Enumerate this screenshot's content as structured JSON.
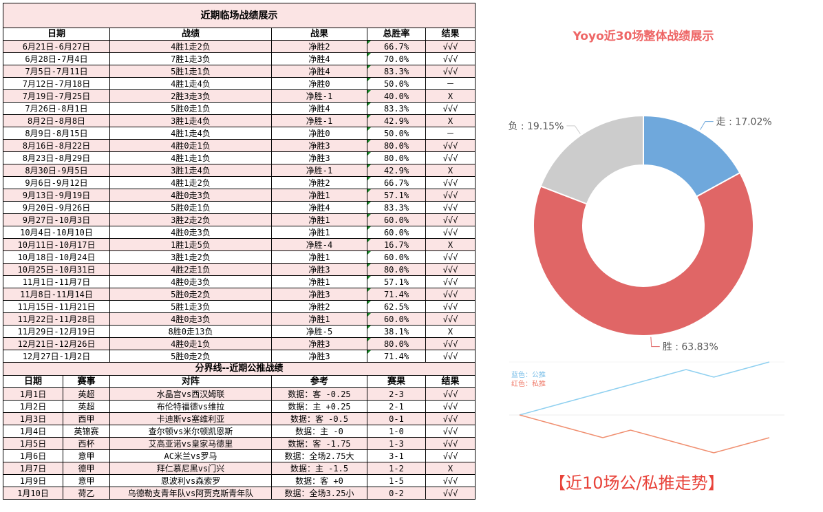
{
  "left": {
    "title": "近期临场战绩展示",
    "headers": [
      "日期",
      "战绩",
      "战果",
      "总胜率",
      "结果"
    ],
    "weekly": [
      [
        "6月21日-6月27日",
        "4胜1走2负",
        "净胜2",
        "66.7%",
        "√√√"
      ],
      [
        "6月28日-7月4日",
        "7胜1走3负",
        "净胜4",
        "70.0%",
        "√√√"
      ],
      [
        "7月5日-7月11日",
        "5胜1走1负",
        "净胜4",
        "83.3%",
        "√√√"
      ],
      [
        "7月12日-7月18日",
        "4胜1走4负",
        "净胜0",
        "50.0%",
        "－"
      ],
      [
        "7月19日-7月25日",
        "2胜3走3负",
        "净胜-1",
        "40.0%",
        "X"
      ],
      [
        "7月26日-8月1日",
        "5胜0走1负",
        "净胜4",
        "83.3%",
        "√√√"
      ],
      [
        "8月2日-8月8日",
        "3胜1走4负",
        "净胜-1",
        "42.9%",
        "X"
      ],
      [
        "8月9日-8月15日",
        "4胜1走4负",
        "净胜0",
        "50.0%",
        "－"
      ],
      [
        "8月16日-8月22日",
        "4胜0走1负",
        "净胜3",
        "80.0%",
        "√√√"
      ],
      [
        "8月23日-8月29日",
        "4胜1走1负",
        "净胜3",
        "80.0%",
        "√√√"
      ],
      [
        "8月30日-9月5日",
        "3胜1走4负",
        "净胜-1",
        "42.9%",
        "X"
      ],
      [
        "9月6日-9月12日",
        "4胜1走2负",
        "净胜2",
        "66.7%",
        "√√√"
      ],
      [
        "9月13日-9月19日",
        "4胜0走3负",
        "净胜1",
        "57.1%",
        "√√√"
      ],
      [
        "9月20日-9月26日",
        "5胜0走1负",
        "净胜4",
        "83.3%",
        "√√√"
      ],
      [
        "9月27日-10月3日",
        "3胜2走2负",
        "净胜1",
        "60.0%",
        "√√√"
      ],
      [
        "10月4日-10月10日",
        "4胜0走3负",
        "净胜1",
        "60.0%",
        "√√√"
      ],
      [
        "10月11日-10月17日",
        "1胜1走5负",
        "净胜-4",
        "16.7%",
        "X"
      ],
      [
        "10月18日-10月24日",
        "3胜1走2负",
        "净胜1",
        "60.0%",
        "√√√"
      ],
      [
        "10月25日-10月31日",
        "4胜2走1负",
        "净胜3",
        "80.0%",
        "√√√"
      ],
      [
        "11月1日-11月7日",
        "4胜0走3负",
        "净胜1",
        "57.1%",
        "√√√"
      ],
      [
        "11月8日-11月14日",
        "5胜0走2负",
        "净胜3",
        "71.4%",
        "√√√"
      ],
      [
        "11月15日-11月21日",
        "5胜1走3负",
        "净胜2",
        "62.5%",
        "√√√"
      ],
      [
        "11月22日-11月28日",
        "4胜0走3负",
        "净胜1",
        "60.0%",
        "√√√"
      ],
      [
        "11月29日-12月19日",
        "8胜0走13负",
        "净胜-5",
        "38.1%",
        "X"
      ],
      [
        "12月21日-12月26日",
        "4胜0走1负",
        "净胜3",
        "80.0%",
        "√√√"
      ],
      [
        "12月27日-1月2日",
        "5胜0走2负",
        "净胜3",
        "71.4%",
        "√√√"
      ]
    ],
    "divider": "分界线--近期公推战绩",
    "match_headers": [
      "日期",
      "赛事",
      "对阵",
      "参考",
      "赛果",
      "结果"
    ],
    "matches": [
      [
        "1月1日",
        "英超",
        "水晶宫vs西汉姆联",
        "数据：客 -0.25",
        "2-3",
        "√√√"
      ],
      [
        "1月2日",
        "英超",
        "布伦特福德vs维拉",
        "数据：主 +0.25",
        "2-1",
        "√√√"
      ],
      [
        "1月3日",
        "西甲",
        "卡迪斯vs塞维利亚",
        "数据：客 -0.5",
        "0-1",
        "√√√"
      ],
      [
        "1月4日",
        "英锦赛",
        "查尔顿vs米尔顿凯恩斯",
        "数据：主 -0",
        "1-0",
        "√√√"
      ],
      [
        "1月5日",
        "西杯",
        "艾高亚诺vs皇家马德里",
        "数据：客 -1.75",
        "1-3",
        "√√√"
      ],
      [
        "1月6日",
        "意甲",
        "AC米兰vs罗马",
        "数据：全场2.75大",
        "3-1",
        "√√√"
      ],
      [
        "1月7日",
        "德甲",
        "拜仁慕尼黑vs门兴",
        "数据：主 -1.5",
        "1-2",
        "X"
      ],
      [
        "1月9日",
        "意甲",
        "恩波利vs森索罗",
        "数据：客 +0",
        "1-5",
        "√√√"
      ],
      [
        "1月10日",
        "荷乙",
        "乌德勒支青年队vs阿贾克斯青年队",
        "数据：全场3.25小",
        "0-2",
        "√√√"
      ]
    ]
  },
  "donut": {
    "title": "Yoyo近30场整体战绩展示"
  },
  "chart_data": [
    {
      "type": "pie",
      "title": "Yoyo近30场整体战绩展示",
      "labels": [
        "走",
        "胜",
        "负"
      ],
      "values": [
        17.02,
        63.83,
        19.15
      ],
      "value_labels": [
        "走 : 17.02%",
        "胜 : 63.83%",
        "负 : 19.15%"
      ],
      "colors": [
        "#6fa8dc",
        "#e06666",
        "#cccccc"
      ],
      "donut": true,
      "legend": "none"
    },
    {
      "type": "line",
      "title": "【近10场公/私推走势】",
      "legend_lines": [
        "蓝色：公推",
        "红色：私推"
      ],
      "legend": "top-left",
      "grid": false,
      "series": [
        {
          "name": "公推",
          "color": "#8fd0f0",
          "values": [
            0,
            1,
            2,
            3,
            4,
            5,
            6,
            5,
            6,
            7
          ]
        },
        {
          "name": "私推",
          "color": "#f08f70",
          "values": [
            0,
            -1,
            -2,
            -3,
            -2,
            -3,
            -4,
            -5,
            -4,
            -3
          ]
        }
      ]
    }
  ]
}
